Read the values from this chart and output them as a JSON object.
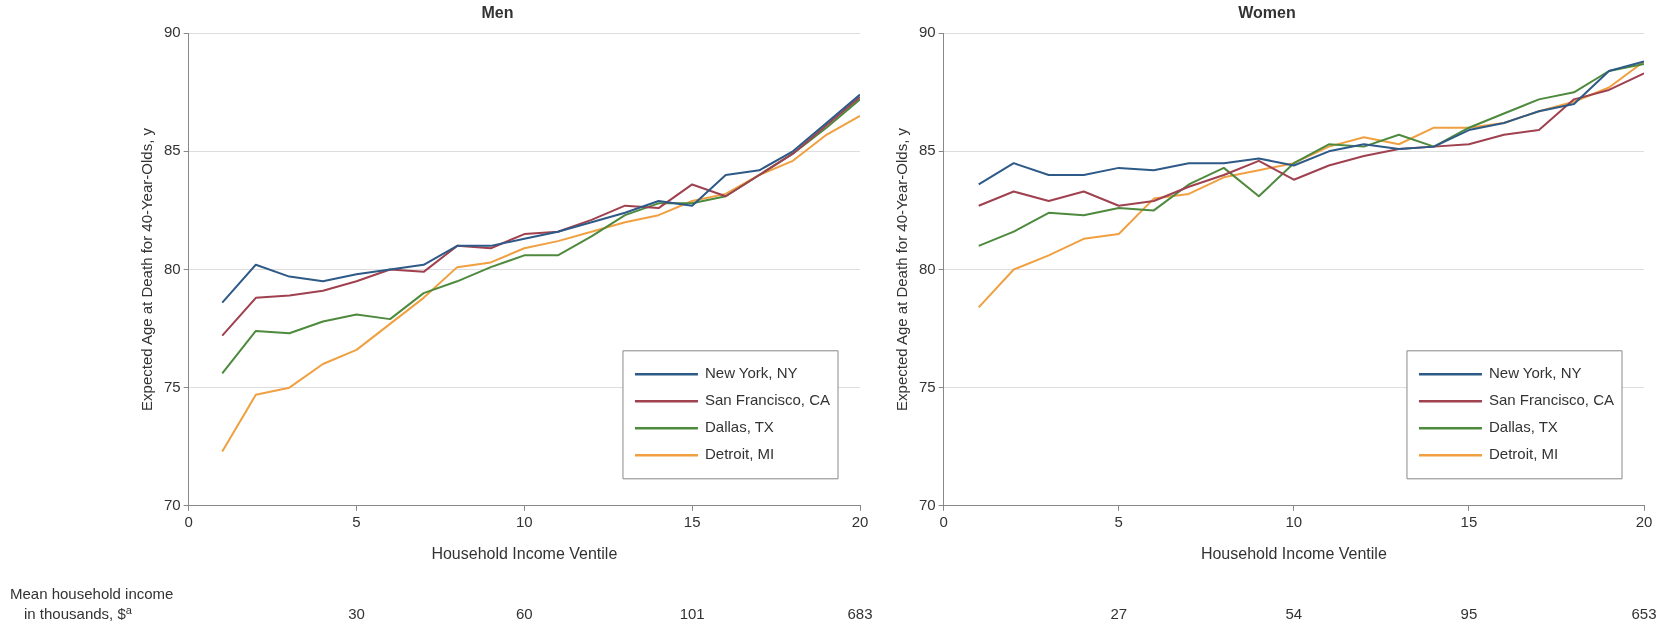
{
  "chart_data": [
    {
      "type": "line",
      "title": "Men",
      "xlabel": "Household Income Ventile",
      "ylabel": "Expected Age at Death for 40-Year-Olds, y",
      "x": [
        1,
        2,
        3,
        4,
        5,
        6,
        7,
        8,
        9,
        10,
        11,
        12,
        13,
        14,
        15,
        16,
        17,
        18,
        19,
        20
      ],
      "xlim": [
        0,
        20
      ],
      "xticks": [
        0,
        5,
        10,
        15,
        20
      ],
      "ylim": [
        70,
        90
      ],
      "yticks": [
        70,
        75,
        80,
        85,
        90
      ],
      "grid": "y",
      "legend": "bottom right",
      "marker": "none",
      "line_style": "solid",
      "series": [
        {
          "name": "New York, NY",
          "color": "#2e5a88",
          "values": [
            78.6,
            80.2,
            79.7,
            79.5,
            79.8,
            80.0,
            80.2,
            81.0,
            81.0,
            81.3,
            81.6,
            82.0,
            82.4,
            82.9,
            82.7,
            84.0,
            84.2,
            85.0,
            86.2,
            87.4
          ]
        },
        {
          "name": "San Francisco, CA",
          "color": "#a0414f",
          "values": [
            77.2,
            78.8,
            78.9,
            79.1,
            79.5,
            80.0,
            79.9,
            81.0,
            80.9,
            81.5,
            81.6,
            82.1,
            82.7,
            82.6,
            83.6,
            83.1,
            84.0,
            84.9,
            86.1,
            87.3
          ]
        },
        {
          "name": "Dallas, TX",
          "color": "#4e8a3e",
          "values": [
            75.6,
            77.4,
            77.3,
            77.8,
            78.1,
            77.9,
            79.0,
            79.5,
            80.1,
            80.6,
            80.6,
            81.4,
            82.3,
            82.8,
            82.8,
            83.1,
            84.0,
            84.9,
            86.0,
            87.2
          ]
        },
        {
          "name": "Detroit, MI",
          "color": "#f0a040",
          "values": [
            72.3,
            74.7,
            75.0,
            76.0,
            76.6,
            77.7,
            78.8,
            80.1,
            80.3,
            80.9,
            81.2,
            81.6,
            82.0,
            82.3,
            82.9,
            83.2,
            84.0,
            84.6,
            85.7,
            86.5
          ]
        }
      ],
      "annotations": [
        "Mean household income in thousands, $$^{a}$",
        "30",
        "60",
        "101",
        "683"
      ]
    },
    {
      "type": "line",
      "title": "Women",
      "xlabel": "Household Income Ventile",
      "ylabel": "Expected Age at Death for 40-Year-Olds, y",
      "x": [
        1,
        2,
        3,
        4,
        5,
        6,
        7,
        8,
        9,
        10,
        11,
        12,
        13,
        14,
        15,
        16,
        17,
        18,
        19,
        20
      ],
      "xlim": [
        0,
        20
      ],
      "xticks": [
        0,
        5,
        10,
        15,
        20
      ],
      "ylim": [
        70,
        90
      ],
      "yticks": [
        70,
        75,
        80,
        85,
        90
      ],
      "grid": "y",
      "legend": "bottom right",
      "marker": "none",
      "line_style": "solid",
      "series": [
        {
          "name": "New York, NY",
          "color": "#2e5a88",
          "values": [
            83.6,
            84.5,
            84.0,
            84.0,
            84.3,
            84.2,
            84.5,
            84.5,
            84.7,
            84.4,
            85.0,
            85.3,
            85.1,
            85.2,
            85.9,
            86.2,
            86.7,
            87.0,
            88.4,
            88.8
          ]
        },
        {
          "name": "San Francisco, CA",
          "color": "#a0414f",
          "values": [
            82.7,
            83.3,
            82.9,
            83.3,
            82.7,
            82.9,
            83.5,
            84.0,
            84.6,
            83.8,
            84.4,
            84.8,
            85.1,
            85.2,
            85.3,
            85.7,
            85.9,
            87.2,
            87.6,
            88.3
          ]
        },
        {
          "name": "Dallas, TX",
          "color": "#4e8a3e",
          "values": [
            81.0,
            81.6,
            82.4,
            82.3,
            82.6,
            82.5,
            83.6,
            84.3,
            83.1,
            84.5,
            85.3,
            85.2,
            85.7,
            85.2,
            86.0,
            86.6,
            87.2,
            87.5,
            88.4,
            88.7
          ]
        },
        {
          "name": "Detroit, MI",
          "color": "#f0a040",
          "values": [
            78.4,
            80.0,
            80.6,
            81.3,
            81.5,
            83.0,
            83.2,
            83.9,
            84.2,
            84.5,
            85.2,
            85.6,
            85.3,
            86.0,
            86.0,
            86.2,
            86.7,
            87.1,
            87.7,
            88.8
          ]
        }
      ],
      "annotations": [
        "27",
        "54",
        "95",
        "653"
      ]
    }
  ]
}
